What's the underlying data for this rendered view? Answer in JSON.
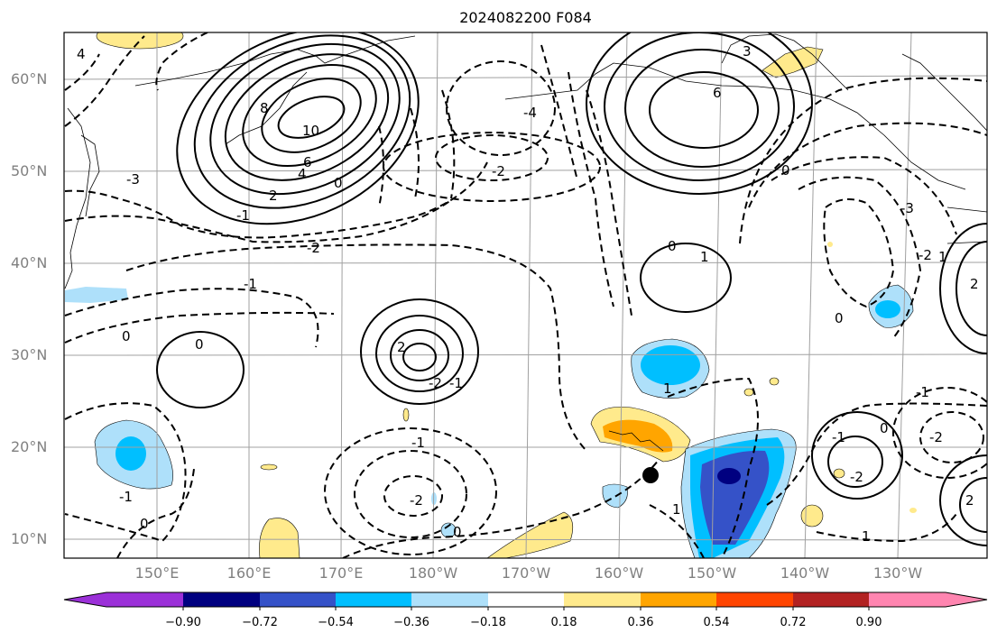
{
  "title": "2024082200 F084",
  "lat_labels": [
    "60°N",
    "50°N",
    "40°N",
    "30°N",
    "20°N",
    "10°N"
  ],
  "lon_labels": [
    "150°E",
    "160°E",
    "170°E",
    "180°W",
    "170°W",
    "160°W",
    "150°W",
    "140°W",
    "130°W"
  ],
  "contour_labels": [
    "4",
    "8",
    "10",
    "6",
    "4",
    "2",
    "0",
    "-1",
    "-3",
    "-2",
    "-1",
    "0",
    "0",
    "2",
    "-2",
    "-1",
    "-1",
    "-2",
    "0",
    "-1",
    "-4",
    "-2",
    "1",
    "3",
    "6",
    "0",
    "0",
    "1",
    "0",
    "-1",
    "-3",
    "-2",
    "0",
    "1",
    "2",
    "-1",
    "0",
    "-2",
    "-2",
    "1",
    "1",
    "2"
  ],
  "colorbar": {
    "tick_labels": [
      "−0.90",
      "−0.72",
      "−0.54",
      "−0.36",
      "−0.18",
      "0.18",
      "0.36",
      "0.54",
      "0.72",
      "0.90"
    ],
    "colors": [
      "#9b30d8",
      "#000080",
      "#3552c8",
      "#00bfff",
      "#aee0fa",
      "#ffffff",
      "#ffea8c",
      "#ffa500",
      "#ff4500",
      "#b22222",
      "#ff85b0"
    ]
  },
  "marker": "black-dot"
}
